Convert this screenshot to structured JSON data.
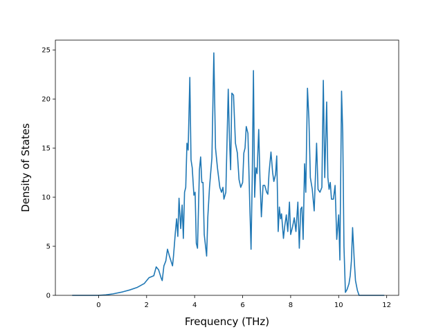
{
  "chart_data": {
    "type": "line",
    "title": "",
    "xlabel": "Frequency (THz)",
    "ylabel": "Density of States",
    "xlim": [
      -1.8,
      12.5
    ],
    "ylim": [
      0,
      26
    ],
    "xticks": [
      0,
      2,
      4,
      6,
      8,
      10,
      12
    ],
    "yticks": [
      0,
      5,
      10,
      15,
      20,
      25
    ],
    "grid": false,
    "legend": "none",
    "series": [
      {
        "color": "#1f77b4",
        "points": [
          [
            -1.1,
            0
          ],
          [
            -0.5,
            0
          ],
          [
            0.0,
            0
          ],
          [
            0.3,
            0.05
          ],
          [
            0.6,
            0.15
          ],
          [
            1.0,
            0.35
          ],
          [
            1.3,
            0.55
          ],
          [
            1.6,
            0.8
          ],
          [
            1.9,
            1.2
          ],
          [
            2.1,
            1.8
          ],
          [
            2.3,
            2.0
          ],
          [
            2.4,
            2.9
          ],
          [
            2.5,
            2.6
          ],
          [
            2.6,
            1.8
          ],
          [
            2.65,
            1.5
          ],
          [
            2.72,
            3.0
          ],
          [
            2.8,
            3.5
          ],
          [
            2.87,
            4.7
          ],
          [
            2.95,
            4.0
          ],
          [
            3.08,
            3.0
          ],
          [
            3.12,
            4.0
          ],
          [
            3.2,
            6.5
          ],
          [
            3.25,
            7.8
          ],
          [
            3.3,
            6.0
          ],
          [
            3.35,
            9.9
          ],
          [
            3.42,
            6.8
          ],
          [
            3.48,
            9.2
          ],
          [
            3.53,
            5.8
          ],
          [
            3.58,
            10.5
          ],
          [
            3.63,
            11.0
          ],
          [
            3.68,
            15.5
          ],
          [
            3.73,
            14.8
          ],
          [
            3.8,
            22.2
          ],
          [
            3.85,
            13.8
          ],
          [
            3.9,
            13.0
          ],
          [
            3.97,
            10.2
          ],
          [
            4.02,
            10.5
          ],
          [
            4.07,
            5.3
          ],
          [
            4.12,
            4.8
          ],
          [
            4.2,
            12.8
          ],
          [
            4.25,
            14.1
          ],
          [
            4.3,
            11.5
          ],
          [
            4.35,
            11.5
          ],
          [
            4.4,
            6.2
          ],
          [
            4.5,
            4.0
          ],
          [
            4.55,
            8.0
          ],
          [
            4.62,
            11.0
          ],
          [
            4.72,
            14.0
          ],
          [
            4.8,
            24.7
          ],
          [
            4.87,
            15.0
          ],
          [
            4.95,
            13.0
          ],
          [
            5.05,
            11.0
          ],
          [
            5.12,
            10.5
          ],
          [
            5.18,
            11.0
          ],
          [
            5.22,
            9.8
          ],
          [
            5.3,
            10.5
          ],
          [
            5.4,
            21.0
          ],
          [
            5.45,
            16.0
          ],
          [
            5.5,
            12.8
          ],
          [
            5.55,
            20.6
          ],
          [
            5.62,
            20.4
          ],
          [
            5.7,
            15.5
          ],
          [
            5.78,
            14.5
          ],
          [
            5.85,
            11.8
          ],
          [
            5.92,
            11.0
          ],
          [
            6.0,
            11.5
          ],
          [
            6.05,
            14.5
          ],
          [
            6.1,
            15.0
          ],
          [
            6.15,
            17.2
          ],
          [
            6.22,
            16.5
          ],
          [
            6.3,
            9.0
          ],
          [
            6.35,
            4.7
          ],
          [
            6.4,
            12.0
          ],
          [
            6.45,
            22.9
          ],
          [
            6.5,
            10.0
          ],
          [
            6.55,
            13.0
          ],
          [
            6.6,
            12.4
          ],
          [
            6.67,
            16.9
          ],
          [
            6.72,
            12.0
          ],
          [
            6.78,
            8.0
          ],
          [
            6.85,
            11.2
          ],
          [
            6.92,
            11.2
          ],
          [
            7.0,
            10.5
          ],
          [
            7.05,
            10.3
          ],
          [
            7.1,
            12.5
          ],
          [
            7.18,
            14.6
          ],
          [
            7.25,
            12.5
          ],
          [
            7.3,
            11.6
          ],
          [
            7.37,
            12.3
          ],
          [
            7.42,
            14.2
          ],
          [
            7.48,
            6.5
          ],
          [
            7.53,
            9.0
          ],
          [
            7.58,
            7.8
          ],
          [
            7.62,
            8.3
          ],
          [
            7.7,
            5.8
          ],
          [
            7.75,
            7.0
          ],
          [
            7.82,
            8.2
          ],
          [
            7.88,
            6.5
          ],
          [
            7.95,
            9.5
          ],
          [
            8.0,
            6.2
          ],
          [
            8.08,
            7.0
          ],
          [
            8.15,
            7.9
          ],
          [
            8.22,
            6.5
          ],
          [
            8.3,
            9.5
          ],
          [
            8.36,
            4.8
          ],
          [
            8.42,
            8.8
          ],
          [
            8.47,
            9.0
          ],
          [
            8.52,
            5.7
          ],
          [
            8.58,
            13.4
          ],
          [
            8.63,
            10.5
          ],
          [
            8.7,
            21.1
          ],
          [
            8.76,
            18.0
          ],
          [
            8.82,
            12.0
          ],
          [
            8.9,
            10.8
          ],
          [
            8.98,
            8.6
          ],
          [
            9.08,
            15.5
          ],
          [
            9.14,
            10.8
          ],
          [
            9.22,
            10.5
          ],
          [
            9.3,
            11.0
          ],
          [
            9.36,
            21.9
          ],
          [
            9.42,
            12.0
          ],
          [
            9.5,
            19.7
          ],
          [
            9.55,
            12.0
          ],
          [
            9.6,
            10.8
          ],
          [
            9.65,
            11.5
          ],
          [
            9.7,
            9.8
          ],
          [
            9.78,
            9.8
          ],
          [
            9.85,
            11.2
          ],
          [
            9.92,
            5.7
          ],
          [
            10.0,
            8.2
          ],
          [
            10.05,
            3.6
          ],
          [
            10.12,
            20.8
          ],
          [
            10.17,
            16.5
          ],
          [
            10.22,
            5.0
          ],
          [
            10.28,
            0.3
          ],
          [
            10.35,
            0.6
          ],
          [
            10.43,
            1.2
          ],
          [
            10.48,
            2.0
          ],
          [
            10.53,
            3.5
          ],
          [
            10.58,
            6.9
          ],
          [
            10.65,
            3.5
          ],
          [
            10.7,
            1.5
          ],
          [
            10.78,
            0.5
          ],
          [
            10.85,
            0
          ],
          [
            11.3,
            0
          ],
          [
            11.9,
            0
          ]
        ]
      }
    ]
  }
}
